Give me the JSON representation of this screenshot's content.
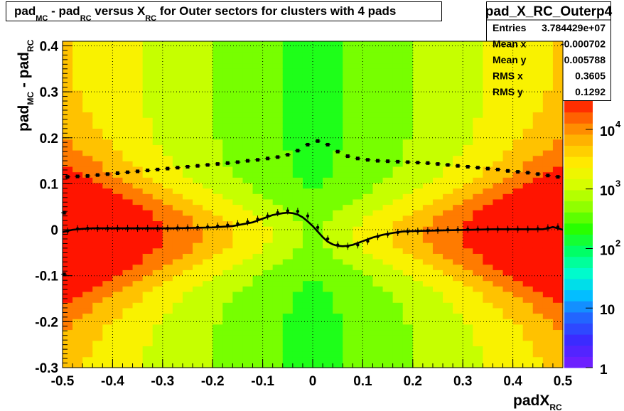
{
  "chart_data": {
    "type": "heatmap",
    "title": {
      "parts": [
        "pad",
        "MC",
        " - pad",
        "RC",
        " versus X",
        "RC",
        " for Outer sectors for clusters with 4 pads"
      ]
    },
    "xlabel": {
      "main": "padX",
      "sub": "RC"
    },
    "ylabel": {
      "parts": [
        "pad",
        "MC",
        " - pad",
        "RC"
      ]
    },
    "xlim": [
      -0.5,
      0.5
    ],
    "ylim": [
      -0.3,
      0.41
    ],
    "grid": true,
    "x_ticks": [
      "-0.5",
      "-0.4",
      "-0.3",
      "-0.2",
      "-0.1",
      "0",
      "0.1",
      "0.2",
      "0.3",
      "0.4",
      "0.5"
    ],
    "y_ticks": [
      "-0.3",
      "-0.2",
      "-0.1",
      "0",
      "0.1",
      "0.2",
      "0.3",
      "0.4"
    ],
    "z_scale": "log",
    "z_range": [
      1,
      30000
    ],
    "z_ticks": [
      "1",
      "10",
      "10",
      "10",
      "10"
    ],
    "z_tick_exponents": [
      "",
      "",
      "2",
      "3",
      "4"
    ],
    "stats": {
      "name": "pad_X_RC_Outerp4",
      "rows": [
        {
          "label": "Entries",
          "value": "3.784429e+07"
        },
        {
          "label": "Mean x",
          "value": "-0.000702"
        },
        {
          "label": "Mean y",
          "value": "0.005788"
        },
        {
          "label": "RMS x",
          "value": "0.3605"
        },
        {
          "label": "RMS y",
          "value": "0.1292"
        }
      ]
    },
    "series": [
      {
        "kind": "profile-rms",
        "marker": "square",
        "x": [
          -0.49,
          -0.47,
          -0.45,
          -0.43,
          -0.41,
          -0.39,
          -0.37,
          -0.35,
          -0.33,
          -0.31,
          -0.29,
          -0.27,
          -0.25,
          -0.23,
          -0.21,
          -0.19,
          -0.17,
          -0.15,
          -0.13,
          -0.11,
          -0.09,
          -0.07,
          -0.05,
          -0.03,
          -0.01,
          0.01,
          0.03,
          0.05,
          0.07,
          0.09,
          0.11,
          0.13,
          0.15,
          0.17,
          0.19,
          0.21,
          0.23,
          0.25,
          0.27,
          0.29,
          0.31,
          0.33,
          0.35,
          0.37,
          0.39,
          0.41,
          0.43,
          0.45,
          0.47,
          0.49
        ],
        "y": [
          0.115,
          0.116,
          0.117,
          0.119,
          0.121,
          0.123,
          0.125,
          0.127,
          0.129,
          0.131,
          0.133,
          0.135,
          0.137,
          0.139,
          0.141,
          0.143,
          0.145,
          0.147,
          0.15,
          0.152,
          0.155,
          0.158,
          0.163,
          0.172,
          0.185,
          0.193,
          0.185,
          0.17,
          0.16,
          0.155,
          0.152,
          0.15,
          0.149,
          0.148,
          0.147,
          0.146,
          0.145,
          0.143,
          0.141,
          0.139,
          0.137,
          0.135,
          0.133,
          0.131,
          0.128,
          0.126,
          0.124,
          0.121,
          0.118,
          0.115
        ]
      },
      {
        "kind": "profile-mean",
        "marker": "dot",
        "x": [
          -0.49,
          -0.47,
          -0.45,
          -0.43,
          -0.41,
          -0.39,
          -0.37,
          -0.35,
          -0.33,
          -0.31,
          -0.29,
          -0.27,
          -0.25,
          -0.23,
          -0.21,
          -0.19,
          -0.17,
          -0.15,
          -0.13,
          -0.11,
          -0.09,
          -0.07,
          -0.05,
          -0.03,
          -0.01,
          0.01,
          0.03,
          0.05,
          0.07,
          0.09,
          0.11,
          0.13,
          0.15,
          0.17,
          0.19,
          0.21,
          0.23,
          0.25,
          0.27,
          0.29,
          0.31,
          0.33,
          0.35,
          0.37,
          0.39,
          0.41,
          0.43,
          0.45,
          0.47,
          0.49
        ],
        "y": [
          -0.003,
          0.002,
          0.003,
          0.003,
          0.003,
          0.003,
          0.003,
          0.003,
          0.003,
          0.003,
          0.003,
          0.004,
          0.004,
          0.005,
          0.006,
          0.008,
          0.01,
          0.013,
          0.017,
          0.023,
          0.03,
          0.037,
          0.041,
          0.04,
          0.03,
          0.005,
          -0.02,
          -0.033,
          -0.036,
          -0.033,
          -0.025,
          -0.015,
          -0.01,
          -0.006,
          -0.004,
          -0.003,
          -0.002,
          -0.001,
          0.0,
          0.0,
          0.001,
          0.001,
          0.001,
          0.001,
          0.001,
          0.001,
          0.001,
          0.002,
          0.004,
          0.006
        ]
      },
      {
        "kind": "fit",
        "x": [
          -0.5,
          -0.48,
          -0.46,
          -0.44,
          -0.42,
          -0.4,
          -0.36,
          -0.32,
          -0.28,
          -0.24,
          -0.2,
          -0.16,
          -0.12,
          -0.1,
          -0.08,
          -0.06,
          -0.05,
          -0.04,
          -0.03,
          -0.02,
          -0.01,
          0.0,
          0.01,
          0.02,
          0.03,
          0.04,
          0.05,
          0.06,
          0.07,
          0.08,
          0.1,
          0.12,
          0.14,
          0.16,
          0.18,
          0.2,
          0.24,
          0.28,
          0.32,
          0.36,
          0.4,
          0.44,
          0.46,
          0.47,
          0.48,
          0.49,
          0.5
        ],
        "y": [
          -0.005,
          0.0,
          0.002,
          0.003,
          0.003,
          0.003,
          0.003,
          0.003,
          0.003,
          0.004,
          0.005,
          0.008,
          0.016,
          0.024,
          0.032,
          0.036,
          0.037,
          0.036,
          0.033,
          0.027,
          0.018,
          0.008,
          -0.004,
          -0.016,
          -0.026,
          -0.032,
          -0.035,
          -0.036,
          -0.035,
          -0.033,
          -0.025,
          -0.017,
          -0.011,
          -0.007,
          -0.004,
          -0.003,
          -0.002,
          -0.001,
          0.0,
          0.001,
          0.001,
          0.001,
          0.001,
          0.003,
          0.006,
          0.003,
          0.0
        ]
      },
      {
        "kind": "edge-points",
        "x": [
          -0.497,
          -0.497
        ],
        "y": [
          0.037,
          -0.097
        ]
      }
    ]
  }
}
